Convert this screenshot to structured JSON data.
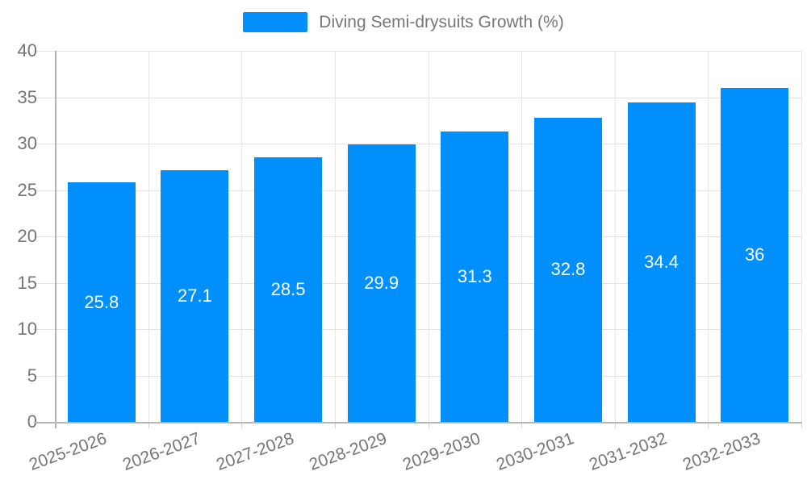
{
  "legend": {
    "label": "Diving Semi-drysuits Growth (%)"
  },
  "colors": {
    "bar": "#008FFB",
    "grid_horizontal": "#e2e2e2",
    "grid_vertical": "#e7e7e7",
    "axis": "#b6b6b6",
    "label_text": "#757575",
    "value_text": "#ffffff",
    "background": "#ffffff"
  },
  "chart_data": {
    "type": "bar",
    "title": "Diving Semi-drysuits Growth (%)",
    "categories": [
      "2025-2026",
      "2026-2027",
      "2027-2028",
      "2028-2029",
      "2029-2030",
      "2030-2031",
      "2031-2032",
      "2032-2033"
    ],
    "series": [
      {
        "name": "Diving Semi-drysuits Growth (%)",
        "values": [
          25.8,
          27.1,
          28.5,
          29.9,
          31.3,
          32.8,
          34.4,
          36
        ]
      }
    ],
    "value_labels": [
      "25.8",
      "27.1",
      "28.5",
      "29.9",
      "31.3",
      "32.8",
      "34.4",
      "36"
    ],
    "xlabel": "",
    "ylabel": "",
    "ylim": [
      0,
      40
    ],
    "yticks": [
      0,
      5,
      10,
      15,
      20,
      25,
      30,
      35,
      40
    ],
    "grid": true,
    "legend_position": "top",
    "bar_label_position": "center"
  }
}
